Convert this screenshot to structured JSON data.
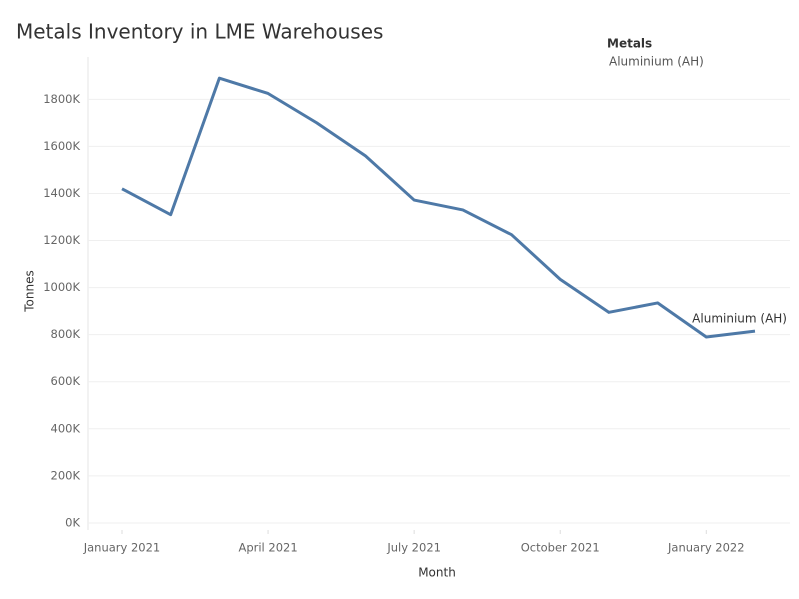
{
  "chart_data": {
    "type": "line",
    "title": "Metals Inventory in LME Warehouses",
    "x_label": "Month",
    "y_label": "Tonnes",
    "legend_title": "Metals",
    "legend_position": "top-right",
    "x": [
      "2021-01",
      "2021-02",
      "2021-03",
      "2021-04",
      "2021-05",
      "2021-06",
      "2021-07",
      "2021-08",
      "2021-09",
      "2021-10",
      "2021-11",
      "2021-12",
      "2022-01",
      "2022-02"
    ],
    "xlim": [
      "2021-01",
      "2022-02"
    ],
    "xticks": [
      {
        "value": "2021-01",
        "label": "January 2021"
      },
      {
        "value": "2021-04",
        "label": "April 2021"
      },
      {
        "value": "2021-07",
        "label": "July 2021"
      },
      {
        "value": "2021-10",
        "label": "October 2021"
      },
      {
        "value": "2022-01",
        "label": "January 2022"
      }
    ],
    "ylim": [
      -30000,
      1980000
    ],
    "yticks": [
      {
        "value": 0,
        "label": "0K"
      },
      {
        "value": 200000,
        "label": "200K"
      },
      {
        "value": 400000,
        "label": "400K"
      },
      {
        "value": 600000,
        "label": "600K"
      },
      {
        "value": 800000,
        "label": "800K"
      },
      {
        "value": 1000000,
        "label": "1000K"
      },
      {
        "value": 1200000,
        "label": "1200K"
      },
      {
        "value": 1400000,
        "label": "1400K"
      },
      {
        "value": 1600000,
        "label": "1600K"
      },
      {
        "value": 1800000,
        "label": "1800K"
      }
    ],
    "grid": true,
    "series": [
      {
        "name": "Aluminium (AH)",
        "color": "#4e79a7",
        "values": [
          1420000,
          1310000,
          1890000,
          1825000,
          1700000,
          1560000,
          1372000,
          1330000,
          1225000,
          1035000,
          895000,
          935000,
          790000,
          815000
        ]
      }
    ]
  }
}
